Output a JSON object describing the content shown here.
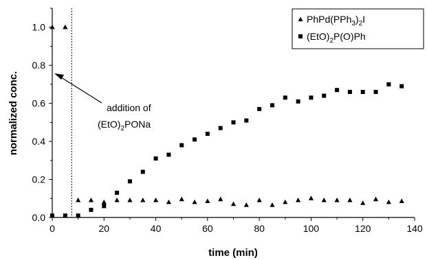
{
  "chart_data": {
    "type": "scatter",
    "xlabel": "time (min)",
    "ylabel": "normalized conc.",
    "xlim": [
      0,
      140
    ],
    "ylim": [
      0,
      1.1
    ],
    "x_ticks": [
      "0",
      "20",
      "40",
      "60",
      "80",
      "100",
      "120",
      "140"
    ],
    "y_ticks": [
      "0.0",
      "0.2",
      "0.4",
      "0.6",
      "0.8",
      "1.0"
    ],
    "grid": false,
    "legend_position": "top-right",
    "series": [
      {
        "name": "PhPd(PPh3)2I",
        "legend_base": "PhPd(PPh",
        "legend_sub1": "3",
        "legend_mid": ")",
        "legend_sub2": "2",
        "legend_end": "I",
        "marker": "triangle",
        "color": "#000000",
        "x": [
          0,
          5,
          10,
          15,
          20,
          25,
          30,
          35,
          40,
          45,
          50,
          55,
          60,
          65,
          70,
          75,
          80,
          85,
          90,
          95,
          100,
          105,
          110,
          115,
          120,
          125,
          130,
          135
        ],
        "y": [
          1.0,
          1.0,
          0.09,
          0.09,
          0.08,
          0.09,
          0.09,
          0.09,
          0.09,
          0.08,
          0.095,
          0.08,
          0.085,
          0.095,
          0.07,
          0.065,
          0.09,
          0.065,
          0.08,
          0.09,
          0.1,
          0.09,
          0.09,
          0.09,
          0.075,
          0.095,
          0.08,
          0.085
        ]
      },
      {
        "name": "(EtO)2P(O)Ph",
        "legend_base": "(EtO)",
        "legend_sub1": "2",
        "legend_end": "P(O)Ph",
        "marker": "square",
        "color": "#000000",
        "x": [
          0,
          5,
          10,
          15,
          20,
          25,
          30,
          35,
          40,
          45,
          50,
          55,
          60,
          65,
          70,
          75,
          80,
          85,
          90,
          95,
          100,
          105,
          110,
          115,
          120,
          125,
          130,
          135
        ],
        "y": [
          0.01,
          0.01,
          0.01,
          0.04,
          0.06,
          0.13,
          0.19,
          0.24,
          0.31,
          0.33,
          0.38,
          0.41,
          0.44,
          0.47,
          0.5,
          0.51,
          0.57,
          0.59,
          0.63,
          0.61,
          0.63,
          0.64,
          0.67,
          0.66,
          0.66,
          0.66,
          0.7,
          0.69
        ]
      }
    ],
    "annotation": {
      "line1": "addition of",
      "line2_base": "(EtO)",
      "line2_sub": "2",
      "line2_end": "PONa",
      "vline_x": 7.5
    }
  }
}
